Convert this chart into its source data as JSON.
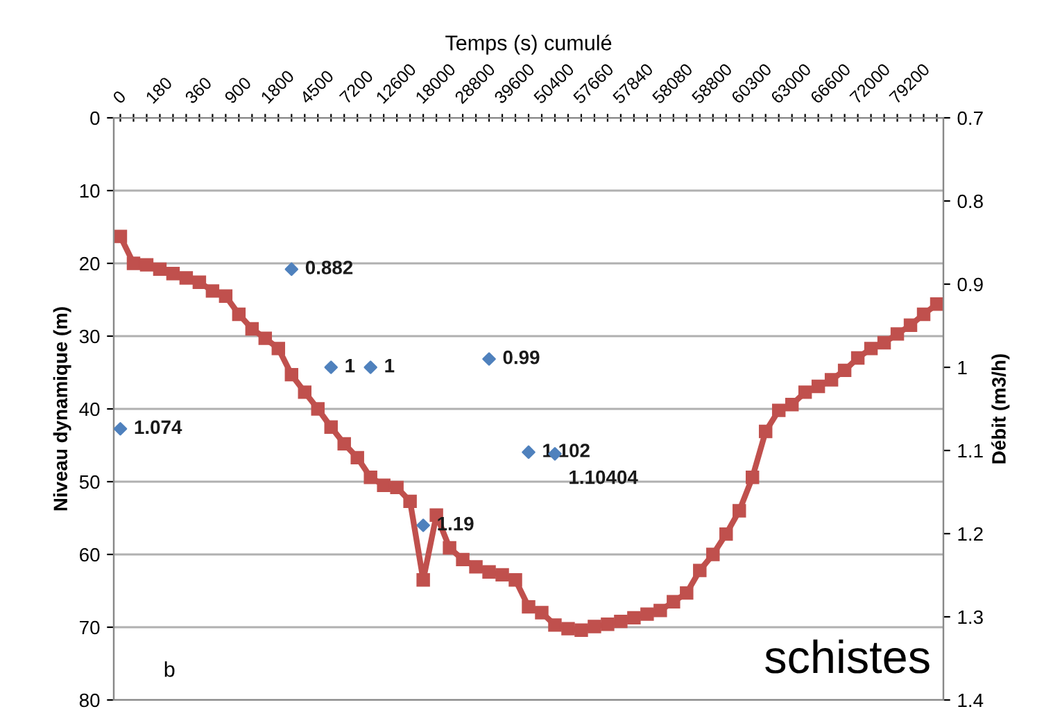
{
  "chart_data": {
    "type": "line",
    "xlabel": "Temps (s) cumulé",
    "ylabel": "Niveau dynamique (m)",
    "y2label": "Débit (m3/h)",
    "categories": [
      "0",
      null,
      null,
      "180",
      null,
      null,
      "360",
      null,
      null,
      "900",
      null,
      null,
      "1800",
      null,
      null,
      "4500",
      null,
      null,
      "7200",
      null,
      null,
      "12600",
      null,
      null,
      "18000",
      null,
      null,
      "28800",
      null,
      null,
      "39600",
      null,
      null,
      "50400",
      null,
      null,
      "57660",
      null,
      null,
      "57840",
      null,
      null,
      "58080",
      null,
      null,
      "58800",
      null,
      null,
      "60300",
      null,
      null,
      "63000",
      null,
      null,
      "66600",
      null,
      null,
      "72000",
      null,
      null,
      "79200",
      null,
      null
    ],
    "series": [
      {
        "color": "#c0504d",
        "marker": "square",
        "values": [
          16.3,
          20.0,
          20.2,
          20.8,
          21.4,
          22.0,
          22.6,
          23.8,
          24.5,
          27.0,
          29.0,
          30.3,
          31.7,
          35.3,
          37.7,
          40.0,
          42.5,
          44.8,
          46.7,
          49.4,
          50.5,
          50.8,
          52.7,
          63.5,
          54.6,
          59.1,
          60.7,
          61.7,
          62.4,
          62.8,
          63.5,
          67.2,
          68.0,
          69.7,
          70.2,
          70.4,
          69.9,
          69.6,
          69.2,
          68.7,
          68.2,
          67.7,
          66.5,
          65.3,
          62.2,
          60.0,
          57.2,
          54.0,
          49.4,
          43.1,
          40.2,
          39.4,
          37.7,
          36.9,
          36.0,
          34.7,
          33.0,
          31.7,
          30.9,
          29.7,
          28.5,
          27.0,
          25.6
        ]
      },
      {
        "type": "scatter",
        "axis": "y2",
        "color": "#4f81bd",
        "marker": "diamond",
        "values": [
          1.074,
          null,
          null,
          null,
          null,
          null,
          null,
          null,
          null,
          null,
          null,
          null,
          null,
          0.882,
          null,
          null,
          1,
          null,
          null,
          1,
          null,
          null,
          null,
          1.19,
          null,
          null,
          null,
          null,
          0.99,
          null,
          null,
          1.102,
          null,
          1.10404,
          null,
          null,
          null,
          null,
          null,
          null,
          null,
          null,
          null,
          null,
          null,
          null,
          null,
          null,
          null,
          null,
          null,
          null,
          null,
          null,
          null,
          null,
          null,
          null,
          null,
          null,
          null,
          null,
          null
        ],
        "value_labels": [
          "1.074",
          null,
          null,
          null,
          null,
          null,
          null,
          null,
          null,
          null,
          null,
          null,
          null,
          "0.882",
          null,
          null,
          "1",
          null,
          null,
          "1",
          null,
          null,
          null,
          "1.19",
          null,
          null,
          null,
          null,
          "0.99",
          null,
          null,
          "1.102",
          null,
          "1.10404",
          null,
          null,
          null,
          null,
          null,
          null,
          null,
          null,
          null,
          null,
          null,
          null,
          null,
          null,
          null,
          null,
          null,
          null,
          null,
          null,
          null,
          null,
          null,
          null,
          null,
          null,
          null,
          null,
          null
        ]
      }
    ],
    "ylim": [
      80,
      0
    ],
    "yticks": [
      0,
      10,
      20,
      30,
      40,
      50,
      60,
      70,
      80
    ],
    "y2lim": [
      1.4,
      0.7
    ],
    "y2ticks": [
      0.7,
      0.8,
      0.9,
      1,
      1.1,
      1.2,
      1.3,
      1.4
    ],
    "grid": "y",
    "annotations": [
      "b",
      "schistes"
    ]
  }
}
